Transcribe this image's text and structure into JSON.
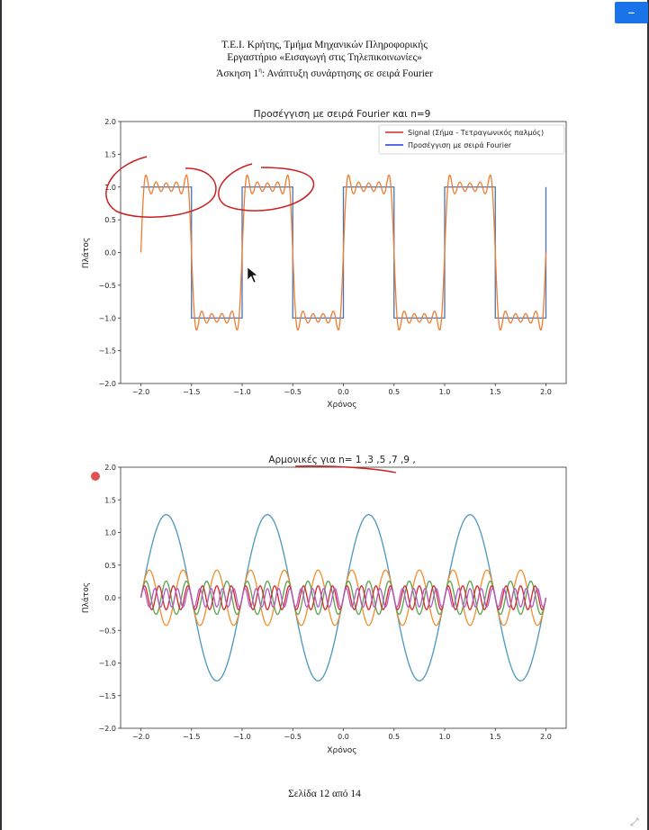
{
  "header": {
    "line1": "Τ.Ε.Ι. Κρήτης, Τμήμα Μηχανικών Πληροφορικής",
    "line2": "Εργαστήριο «Εισαγωγή στις Τηλεπικοινωνίες»",
    "line3_prefix": "Άσκηση 1",
    "line3_sup": "η",
    "line3_suffix": ": Ανάπτυξη συνάρτησης σε σειρά Fourier"
  },
  "footer": {
    "page_label": "Σελίδα 12 από 14"
  },
  "toolbar": {
    "minimize_label": "–"
  },
  "icons": {
    "minimize": "minimize-icon",
    "expand": "expand-icon",
    "cursor": "mouse-pointer-icon"
  },
  "colors": {
    "annotation": "#cc1f1f",
    "marker": "#e05252",
    "accent": "#1a73e8"
  },
  "chart_data": [
    {
      "type": "line",
      "title": "Προσέγγιση με σειρά Fourier και n=9",
      "xlabel": "Χρόνος",
      "ylabel": "Πλάτος",
      "xlim": [
        -2.2,
        2.2
      ],
      "ylim": [
        -2.0,
        2.0
      ],
      "xticks": [
        "−2.0",
        "−1.5",
        "−1.0",
        "−0.5",
        "0.0",
        "0.5",
        "1.0",
        "1.5",
        "2.0"
      ],
      "yticks": [
        "2.0",
        "1.5",
        "1.0",
        "0.5",
        "0.0",
        "−0.5",
        "−1.0",
        "−1.5",
        "−2.0"
      ],
      "legend_position": "top-right",
      "legend": [
        {
          "label": "Signal (Σήμα - Τετραγωνικός παλμός)",
          "color": "#d62728"
        },
        {
          "label": "Προσέγγιση με σειρά Fourier",
          "color": "#1f39e0"
        }
      ],
      "series": [
        {
          "name": "Signal (Σήμα - Τετραγωνικός παλμός)",
          "kind": "square-wave",
          "period": 1.0,
          "amplitude": 1.0,
          "x_range": [
            -2.0,
            2.0
          ],
          "color": "#4c72b0"
        },
        {
          "name": "Προσέγγιση με σειρά Fourier",
          "kind": "fourier-square",
          "harmonics": [
            1,
            3,
            5,
            7,
            9
          ],
          "period": 1.0,
          "x_range": [
            -2.0,
            2.0
          ],
          "color": "#ed7d31"
        }
      ]
    },
    {
      "type": "line",
      "title": "Αρμονικές για n= 1 ,3 ,5 ,7 ,9 ,",
      "xlabel": "Χρόνος",
      "ylabel": "Πλάτος",
      "xlim": [
        -2.2,
        2.2
      ],
      "ylim": [
        -2.0,
        2.0
      ],
      "xticks": [
        "−2.0",
        "−1.5",
        "−1.0",
        "−0.5",
        "0.0",
        "0.5",
        "1.0",
        "1.5",
        "2.0"
      ],
      "yticks": [
        "2.0",
        "1.5",
        "1.0",
        "0.5",
        "0.0",
        "−0.5",
        "−1.0",
        "−1.5",
        "−2.0"
      ],
      "series": [
        {
          "harmonic": 1,
          "amplitude": 1.273,
          "period": 1.0,
          "color": "#4c96c0"
        },
        {
          "harmonic": 3,
          "amplitude": 0.424,
          "period": 1.0,
          "color": "#f28e2b"
        },
        {
          "harmonic": 5,
          "amplitude": 0.255,
          "period": 1.0,
          "color": "#59a14f"
        },
        {
          "harmonic": 7,
          "amplitude": 0.182,
          "period": 1.0,
          "color": "#d62728"
        },
        {
          "harmonic": 9,
          "amplitude": 0.141,
          "period": 1.0,
          "color": "#b05cc6"
        }
      ]
    }
  ]
}
